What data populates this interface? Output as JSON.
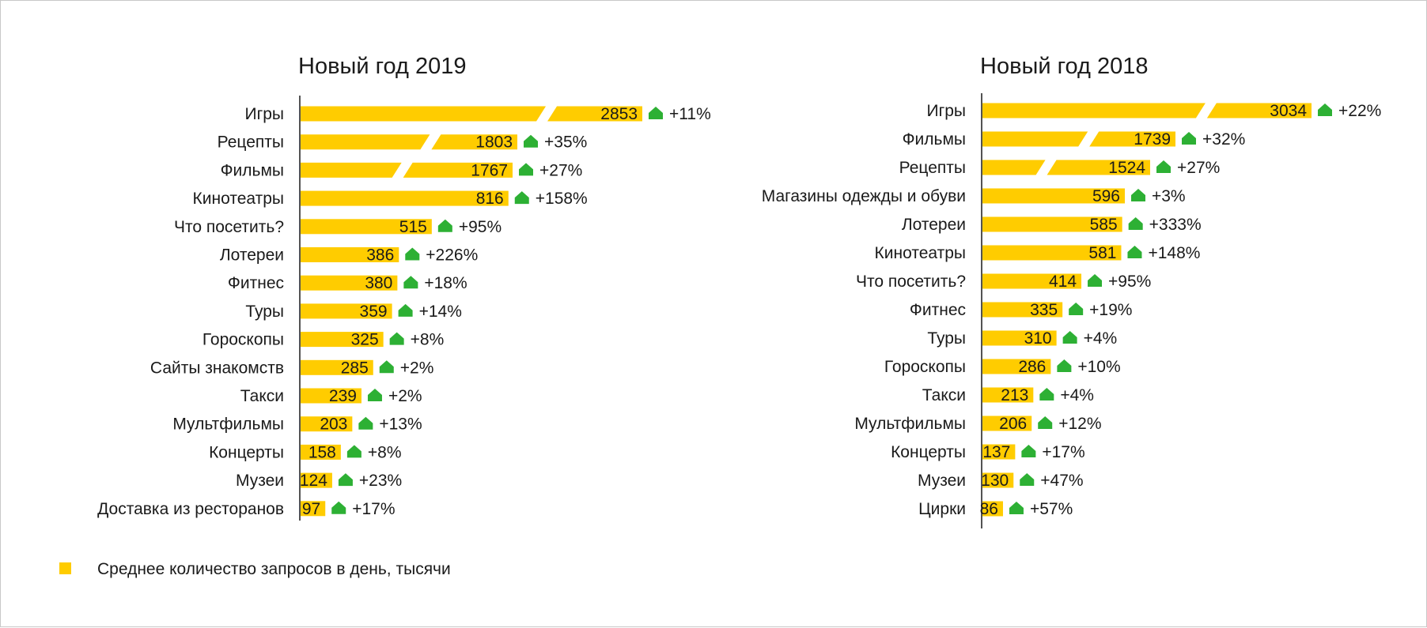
{
  "colors": {
    "bar": "#ffcc00",
    "arrow": "#2db034",
    "axis": "#1a1a1a",
    "text": "#1a1a1a"
  },
  "legend": {
    "text": "Среднее количество запросов в день, тысячи",
    "marker_color": "#ffcc00",
    "placement": "bottom-left"
  },
  "chart_data": [
    {
      "type": "bar",
      "orientation": "horizontal",
      "title": "Новый год 2019",
      "categories": [
        "Игры",
        "Рецепты",
        "Фильмы",
        "Кинотеатры",
        "Что посетить?",
        "Лотереи",
        "Фитнес",
        "Туры",
        "Гороскопы",
        "Сайты знакомств",
        "Такси",
        "Мультфильмы",
        "Концерты",
        "Музеи",
        "Доставка из ресторанов"
      ],
      "values": [
        2853,
        1803,
        1767,
        816,
        515,
        386,
        380,
        359,
        325,
        285,
        239,
        203,
        158,
        124,
        97
      ],
      "value_labels": [
        "2853",
        "1803",
        "1767",
        "816",
        "515",
        "386",
        "380",
        "359",
        "325",
        "285",
        "239",
        "203",
        "158",
        "124",
        "97"
      ],
      "changes": [
        "+11%",
        "+35%",
        "+27%",
        "+158%",
        "+95%",
        "+226%",
        "+18%",
        "+14%",
        "+8%",
        "+2%",
        "+2%",
        "+13%",
        "+8%",
        "+23%",
        "+17%"
      ],
      "broken_axis_bars": [
        0,
        1,
        2
      ]
    },
    {
      "type": "bar",
      "orientation": "horizontal",
      "title": "Новый год 2018",
      "categories": [
        "Игры",
        "Фильмы",
        "Рецепты",
        "Магазины одежды и обуви",
        "Лотереи",
        "Кинотеатры",
        "Что посетить?",
        "Фитнес",
        "Туры",
        "Гороскопы",
        "Такси",
        "Мультфильмы",
        "Концерты",
        "Музеи",
        "Цирки"
      ],
      "values": [
        3034,
        1739,
        1524,
        596,
        585,
        581,
        414,
        335,
        310,
        286,
        213,
        206,
        137,
        130,
        86
      ],
      "value_labels": [
        "3034",
        "1739",
        "1524",
        "596",
        "585",
        "581",
        "414",
        "335",
        "310",
        "286",
        "213",
        "206",
        "137",
        "130",
        "86"
      ],
      "changes": [
        "+22%",
        "+32%",
        "+27%",
        "+3%",
        "+333%",
        "+148%",
        "+95%",
        "+19%",
        "+4%",
        "+10%",
        "+4%",
        "+12%",
        "+17%",
        "+47%",
        "+57%"
      ],
      "broken_axis_bars": [
        0,
        1,
        2
      ]
    }
  ]
}
